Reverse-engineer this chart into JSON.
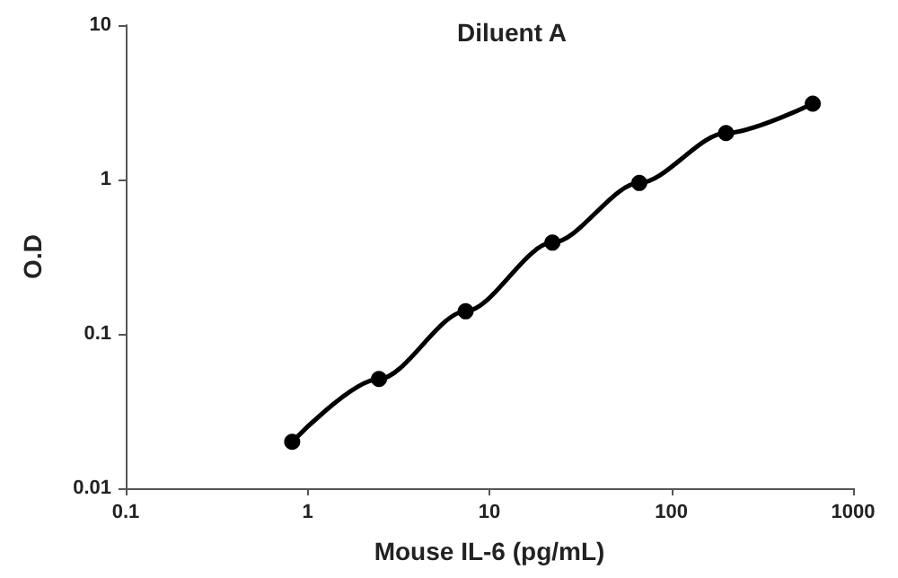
{
  "chart_data": {
    "type": "line",
    "title": "Diluent A",
    "xlabel": "Mouse IL-6 (pg/mL)",
    "ylabel": "O.D",
    "log": "xy",
    "x": [
      0.823,
      2.47,
      7.4,
      22.2,
      66.7,
      200,
      600
    ],
    "series": [
      {
        "color": "#000000",
        "values": [
          0.02,
          0.051,
          0.14,
          0.39,
          0.95,
          2.0,
          3.1
        ]
      }
    ],
    "xlim": [
      0.1,
      1000
    ],
    "xticks": [
      0.1,
      1,
      10,
      100,
      1000
    ],
    "ylim": [
      0.01,
      10
    ],
    "yticks": [
      0.01,
      0.1,
      1,
      10
    ],
    "grid": false,
    "marker": "circle",
    "line_style": "solid"
  }
}
